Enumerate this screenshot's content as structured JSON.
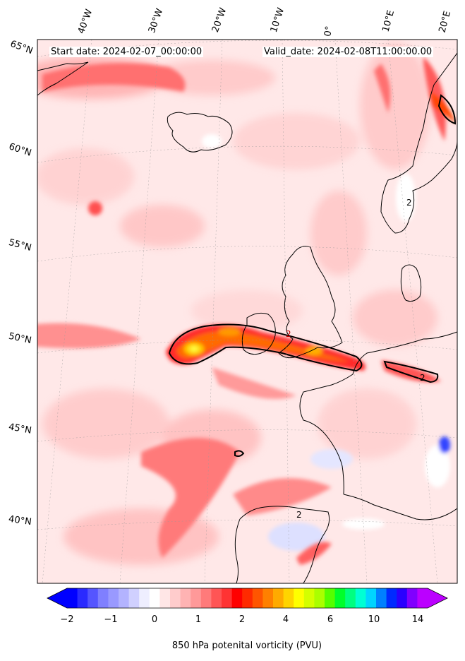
{
  "header": {
    "start_date": "Start date: 2024-02-07_00:00:00",
    "valid_date": "Valid_date: 2024-02-08T11:00:00.00"
  },
  "lon_labels": [
    "40°W",
    "30°W",
    "20°W",
    "10°W",
    "0°",
    "10°E",
    "20°E"
  ],
  "lat_labels": [
    "65°N",
    "60°N",
    "55°N",
    "50°N",
    "45°N",
    "40°N"
  ],
  "contour_labels": [
    "2",
    "2",
    "2",
    "2"
  ],
  "colorbar": {
    "label": "850 hPa potenital vorticity (PVU)",
    "ticks": [
      "−2",
      "−1",
      "0",
      "1",
      "2",
      "4",
      "6",
      "10",
      "14"
    ],
    "colors": [
      "#0000ff",
      "#2a2aff",
      "#5555ff",
      "#7f7fff",
      "#9999ff",
      "#b3b3ff",
      "#d0d0ff",
      "#eeeeff",
      "#ffffff",
      "#ffe6e6",
      "#ffcccc",
      "#ffb3b3",
      "#ff9999",
      "#ff7a7a",
      "#ff5555",
      "#ff3333",
      "#ff0000",
      "#ff2a00",
      "#ff5500",
      "#ff8000",
      "#ffaa00",
      "#ffd400",
      "#ffff00",
      "#d4ff00",
      "#aaff00",
      "#55ff00",
      "#00ff2a",
      "#00ff80",
      "#00ffd4",
      "#00d4ff",
      "#0080ff",
      "#002aff",
      "#2a00ff",
      "#8000ff",
      "#bb00ff"
    ],
    "extend_low_color": "#0000ff",
    "extend_high_color": "#bb00ff"
  },
  "colors": {
    "background_field": "#ffeaea",
    "land_outline": "#000000"
  }
}
